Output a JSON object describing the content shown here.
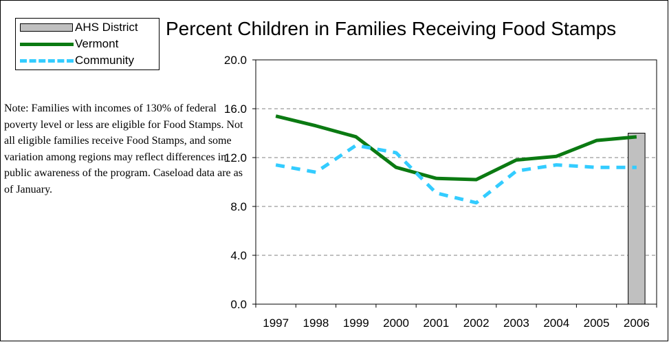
{
  "chart_data": {
    "type": "bar",
    "title": "Percent Children in Families Receiving Food Stamps",
    "xlabel": "",
    "ylabel": "",
    "categories": [
      "1997",
      "1998",
      "1999",
      "2000",
      "2001",
      "2002",
      "2003",
      "2004",
      "2005",
      "2006"
    ],
    "ylim": [
      0,
      20
    ],
    "yticks": [
      "0.0",
      "4.0",
      "8.0",
      "12.0",
      "16.0",
      "20.0"
    ],
    "ytick_values": [
      0,
      4,
      8,
      12,
      16,
      20
    ],
    "grid": true,
    "legend_position": "top-left",
    "series": [
      {
        "name": "AHS District",
        "type": "bar",
        "color": "#c0c0c0",
        "values": [
          null,
          null,
          null,
          null,
          null,
          null,
          null,
          null,
          null,
          14.0
        ]
      },
      {
        "name": "Vermont",
        "type": "line",
        "style": "solid",
        "color": "#0b7a12",
        "values": [
          15.4,
          14.6,
          13.7,
          11.2,
          10.3,
          10.2,
          11.8,
          12.1,
          13.4,
          13.7
        ]
      },
      {
        "name": "Community",
        "type": "line",
        "style": "dashed",
        "color": "#33ccff",
        "values": [
          11.4,
          10.8,
          13.0,
          12.4,
          9.1,
          8.3,
          10.9,
          11.4,
          11.2,
          11.2
        ]
      }
    ]
  },
  "note": "Note: Families with incomes of 130% of federal poverty level or less are eligible for Food Stamps.  Not all eligible families receive Food Stamps, and some variation among regions may reflect differences in public awareness of the program.  Caseload data are as of January."
}
